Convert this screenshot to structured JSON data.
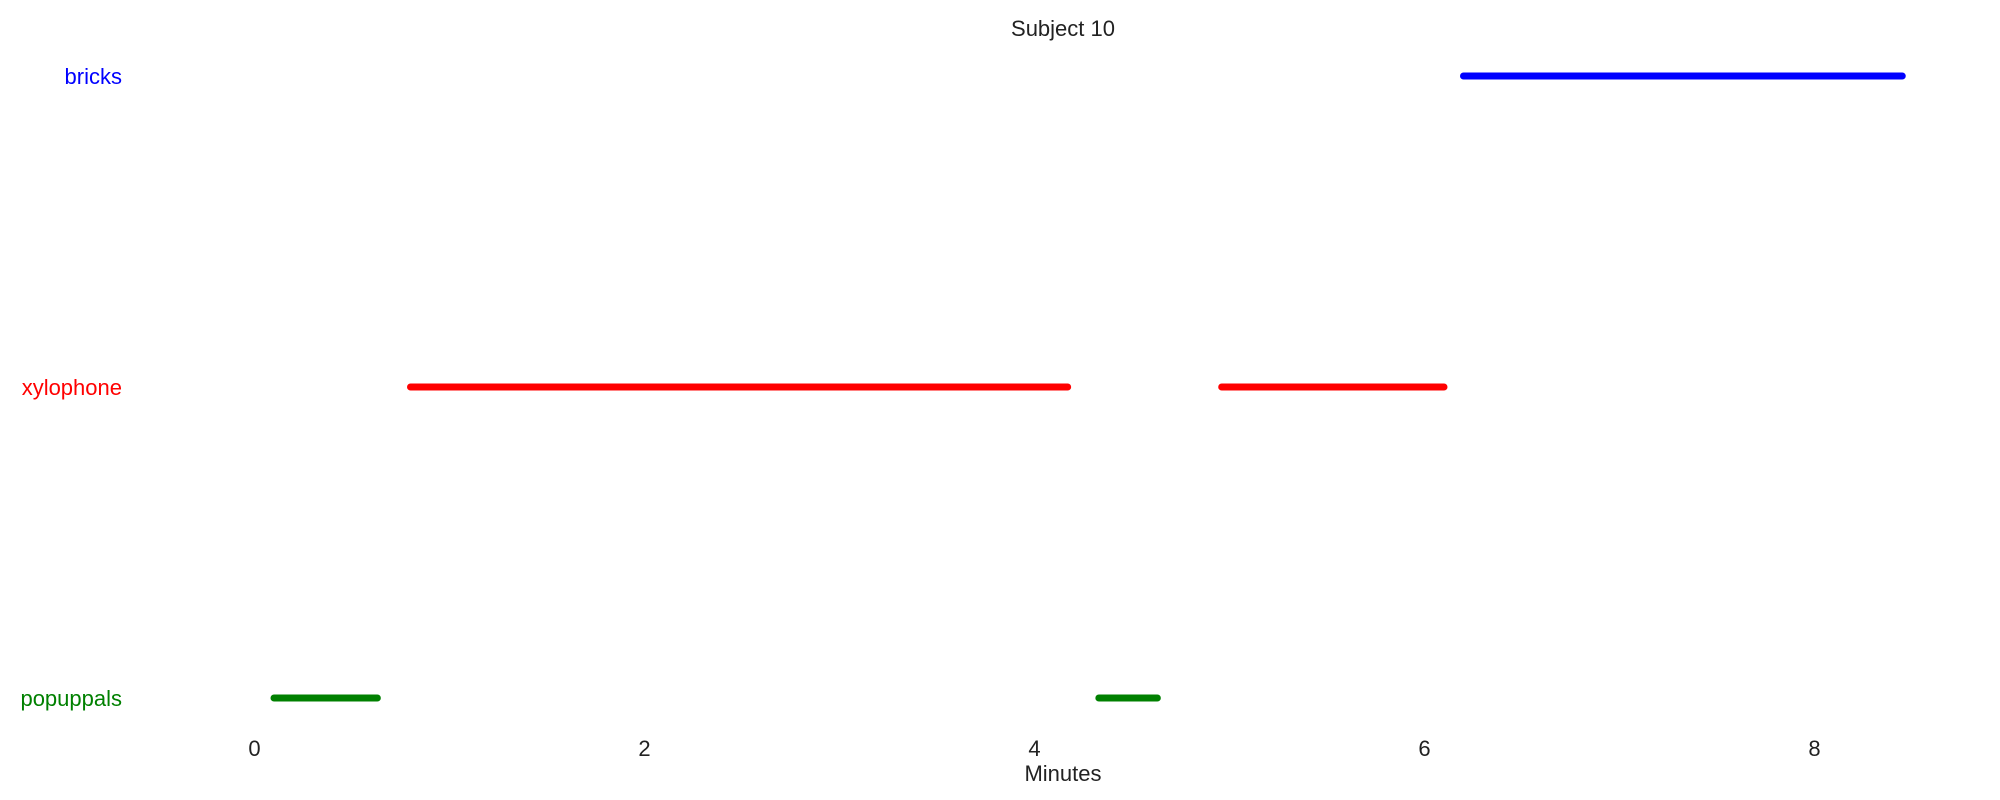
{
  "chart_data": {
    "type": "timeline",
    "title": "Subject 10",
    "xlabel": "Minutes",
    "ylabel": "",
    "xlim": [
      -0.3,
      8.9
    ],
    "xticks": [
      0,
      2,
      4,
      6,
      8
    ],
    "xtick_labels": [
      "0",
      "2",
      "4",
      "6",
      "8"
    ],
    "grid": false,
    "rows": [
      {
        "name": "bricks",
        "color": "#0000ff",
        "intervals": [
          [
            6.2,
            8.45
          ]
        ]
      },
      {
        "name": "xylophone",
        "color": "#ff0000",
        "intervals": [
          [
            0.8,
            4.17
          ],
          [
            4.96,
            6.1
          ]
        ]
      },
      {
        "name": "popuppals",
        "color": "#008000",
        "intervals": [
          [
            0.1,
            0.63
          ],
          [
            4.33,
            4.63
          ]
        ]
      }
    ]
  }
}
